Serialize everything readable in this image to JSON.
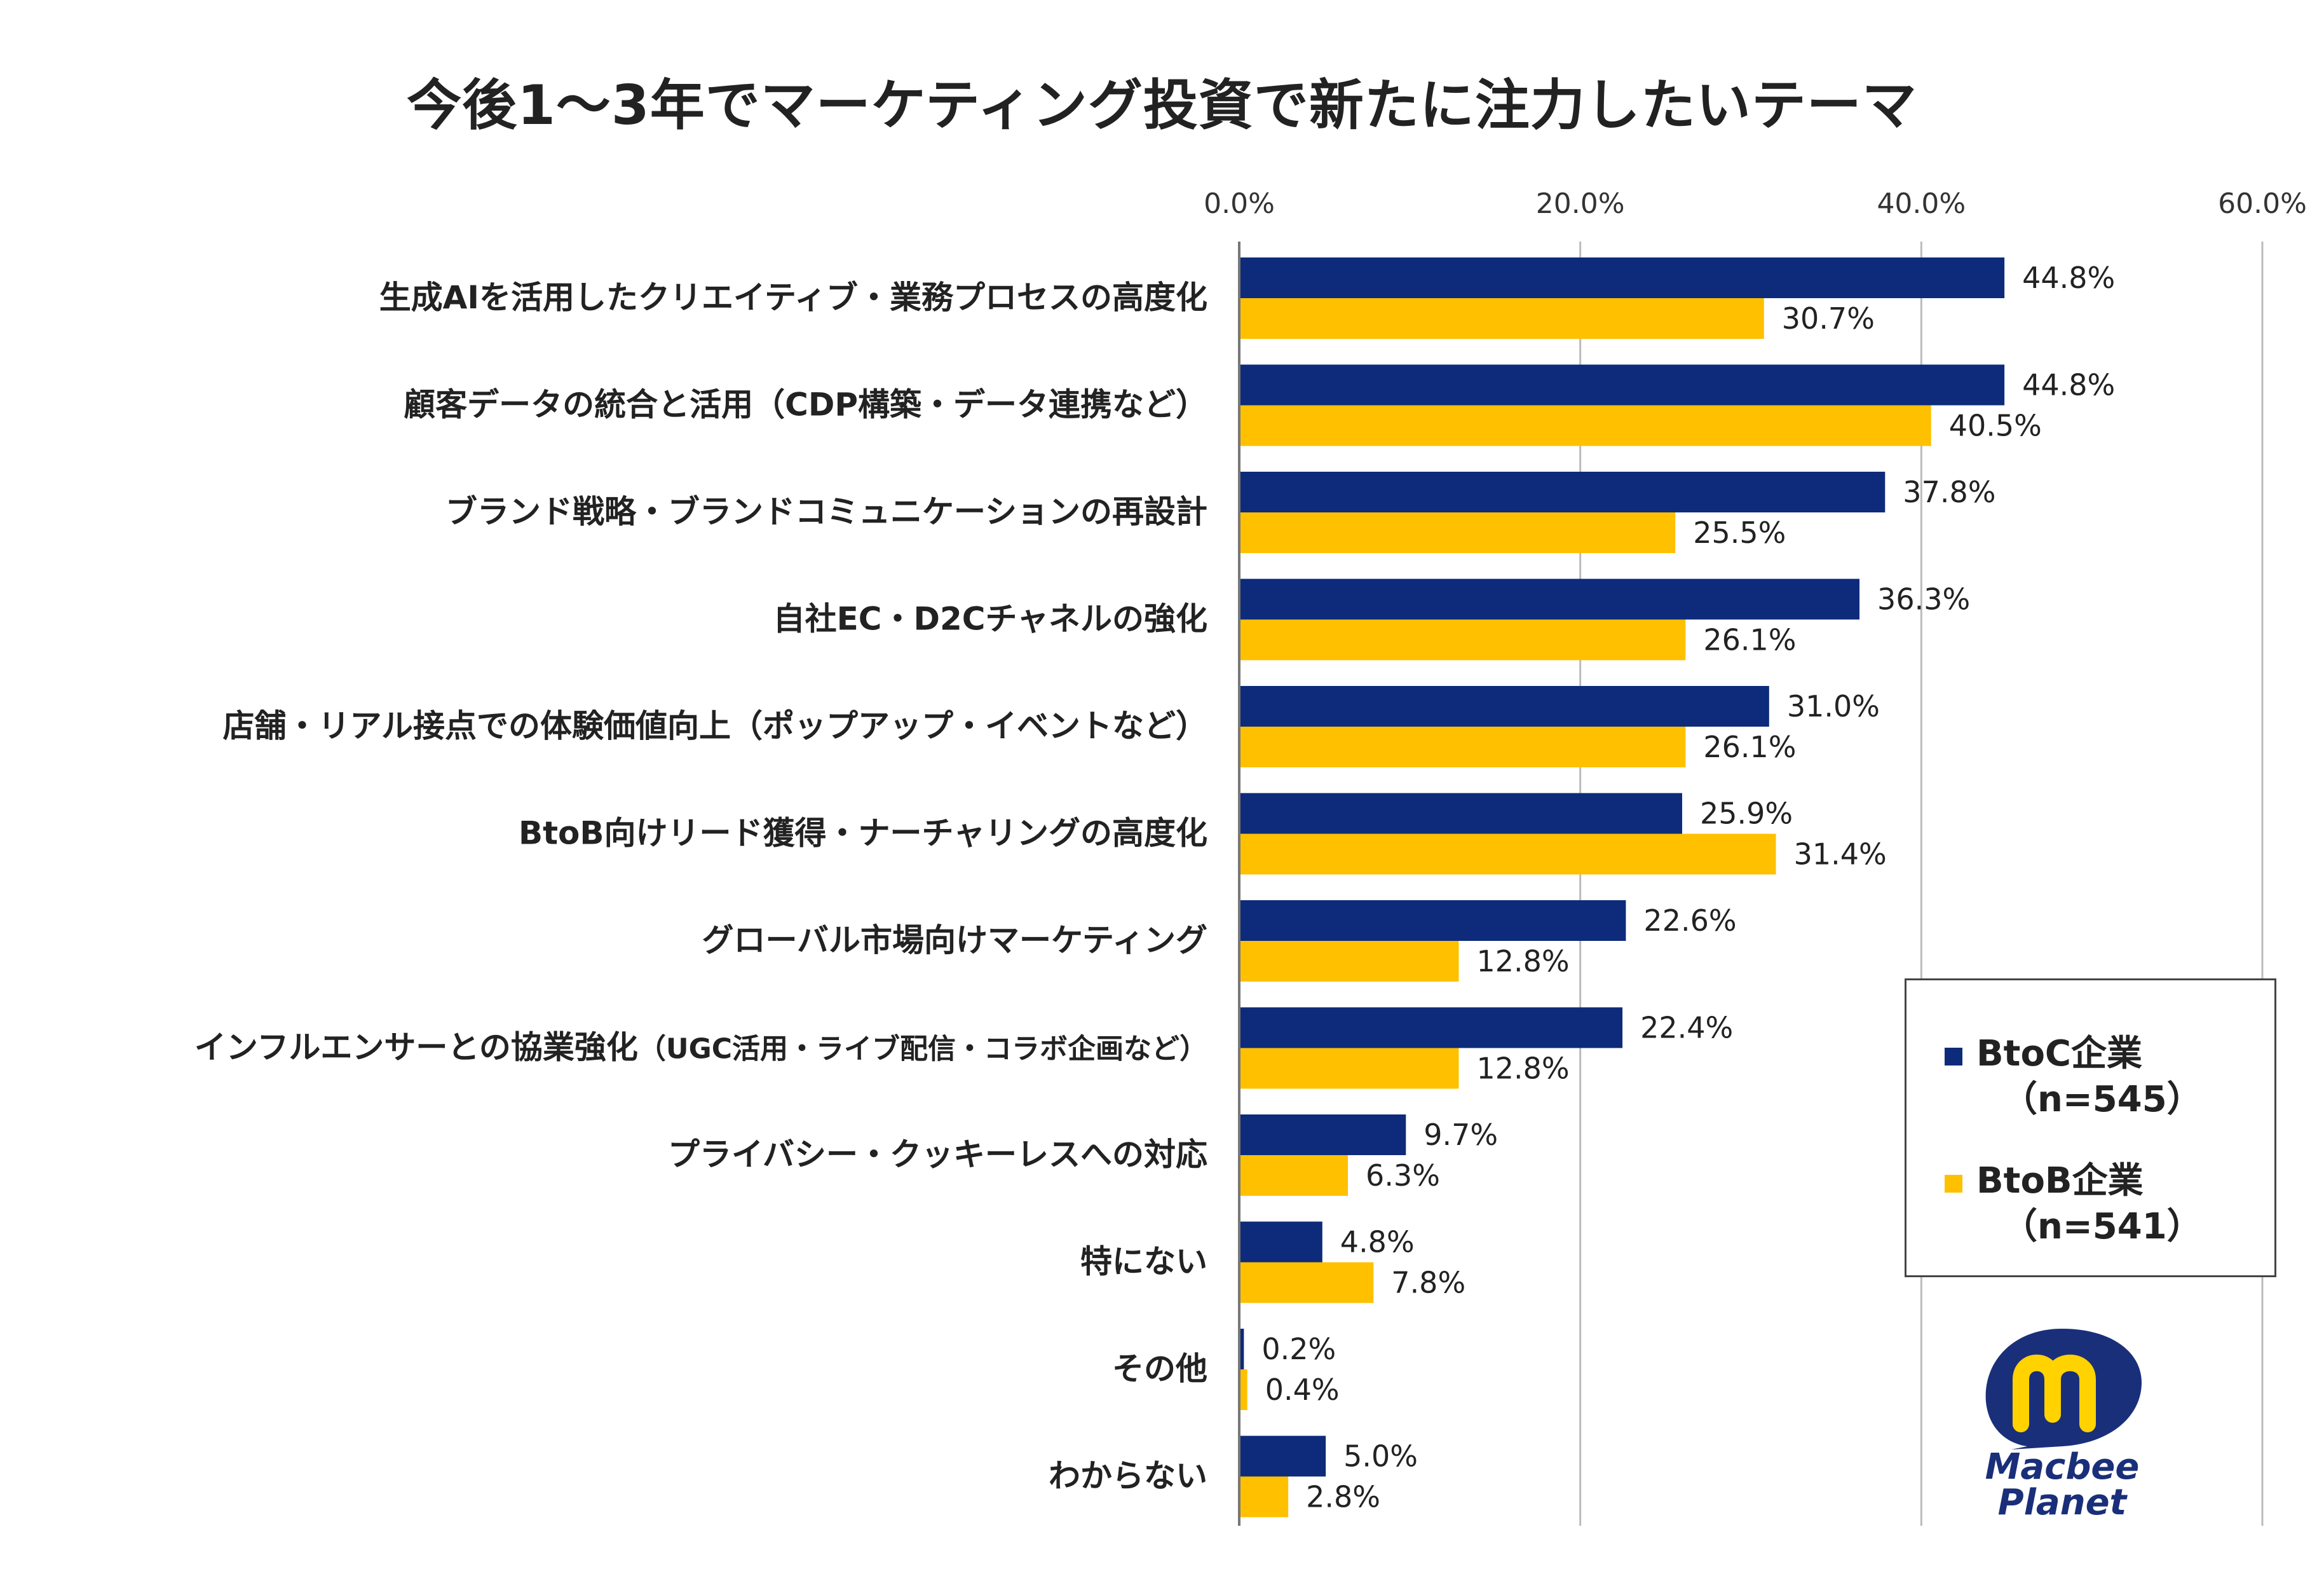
{
  "chart_data": {
    "type": "bar",
    "orientation": "horizontal",
    "title": "今後1～3年でマーケティング投資で新たに注力したいテーマ",
    "categories": [
      "生成AIを活用したクリエイティブ・業務プロセスの高度化",
      "顧客データの統合と活用（CDP構築・データ連携など）",
      "ブランド戦略・ブランドコミュニケーションの再設計",
      "自社EC・D2Cチャネルの強化",
      "店舗・リアル接点での体験価値向上（ポップアップ・イベントなど）",
      "BtoB向けリード獲得・ナーチャリングの高度化",
      "グローバル市場向けマーケティング",
      "インフルエンサーとの協業強化",
      "プライバシー・クッキーレスへの対応",
      "特にない",
      "その他",
      "わからない"
    ],
    "category_suffixes": [
      "",
      "",
      "",
      "",
      "",
      "",
      "",
      "（UGC活用・ライブ配信・コラボ企画など）",
      "",
      "",
      "",
      ""
    ],
    "series": [
      {
        "name": "BtoC企業",
        "n": "（n=545）",
        "color": "#0d2b7a",
        "values": [
          44.8,
          44.8,
          37.8,
          36.3,
          31.0,
          25.9,
          22.6,
          22.4,
          9.7,
          4.8,
          0.2,
          5.0
        ],
        "labels": [
          "44.8%",
          "44.8%",
          "37.8%",
          "36.3%",
          "31.0%",
          "25.9%",
          "22.6%",
          "22.4%",
          "9.7%",
          "4.8%",
          "0.2%",
          "5.0%"
        ]
      },
      {
        "name": "BtoB企業",
        "n": "（n=541）",
        "color": "#ffc000",
        "values": [
          30.7,
          40.5,
          25.5,
          26.1,
          26.1,
          31.4,
          12.8,
          12.8,
          6.3,
          7.8,
          0.4,
          2.8
        ],
        "labels": [
          "30.7%",
          "40.5%",
          "25.5%",
          "26.1%",
          "26.1%",
          "31.4%",
          "12.8%",
          "12.8%",
          "6.3%",
          "7.8%",
          "0.4%",
          "2.8%"
        ]
      }
    ],
    "xlim": [
      0,
      60
    ],
    "xticks": [
      0,
      20,
      40,
      60
    ],
    "xtick_labels": [
      "0.0%",
      "20.0%",
      "40.0%",
      "60.0%"
    ],
    "xaxis_position": "top",
    "grid": true,
    "legend_position": "bottom-right"
  },
  "logo": {
    "line1": "Macbee",
    "line2": "Planet"
  }
}
